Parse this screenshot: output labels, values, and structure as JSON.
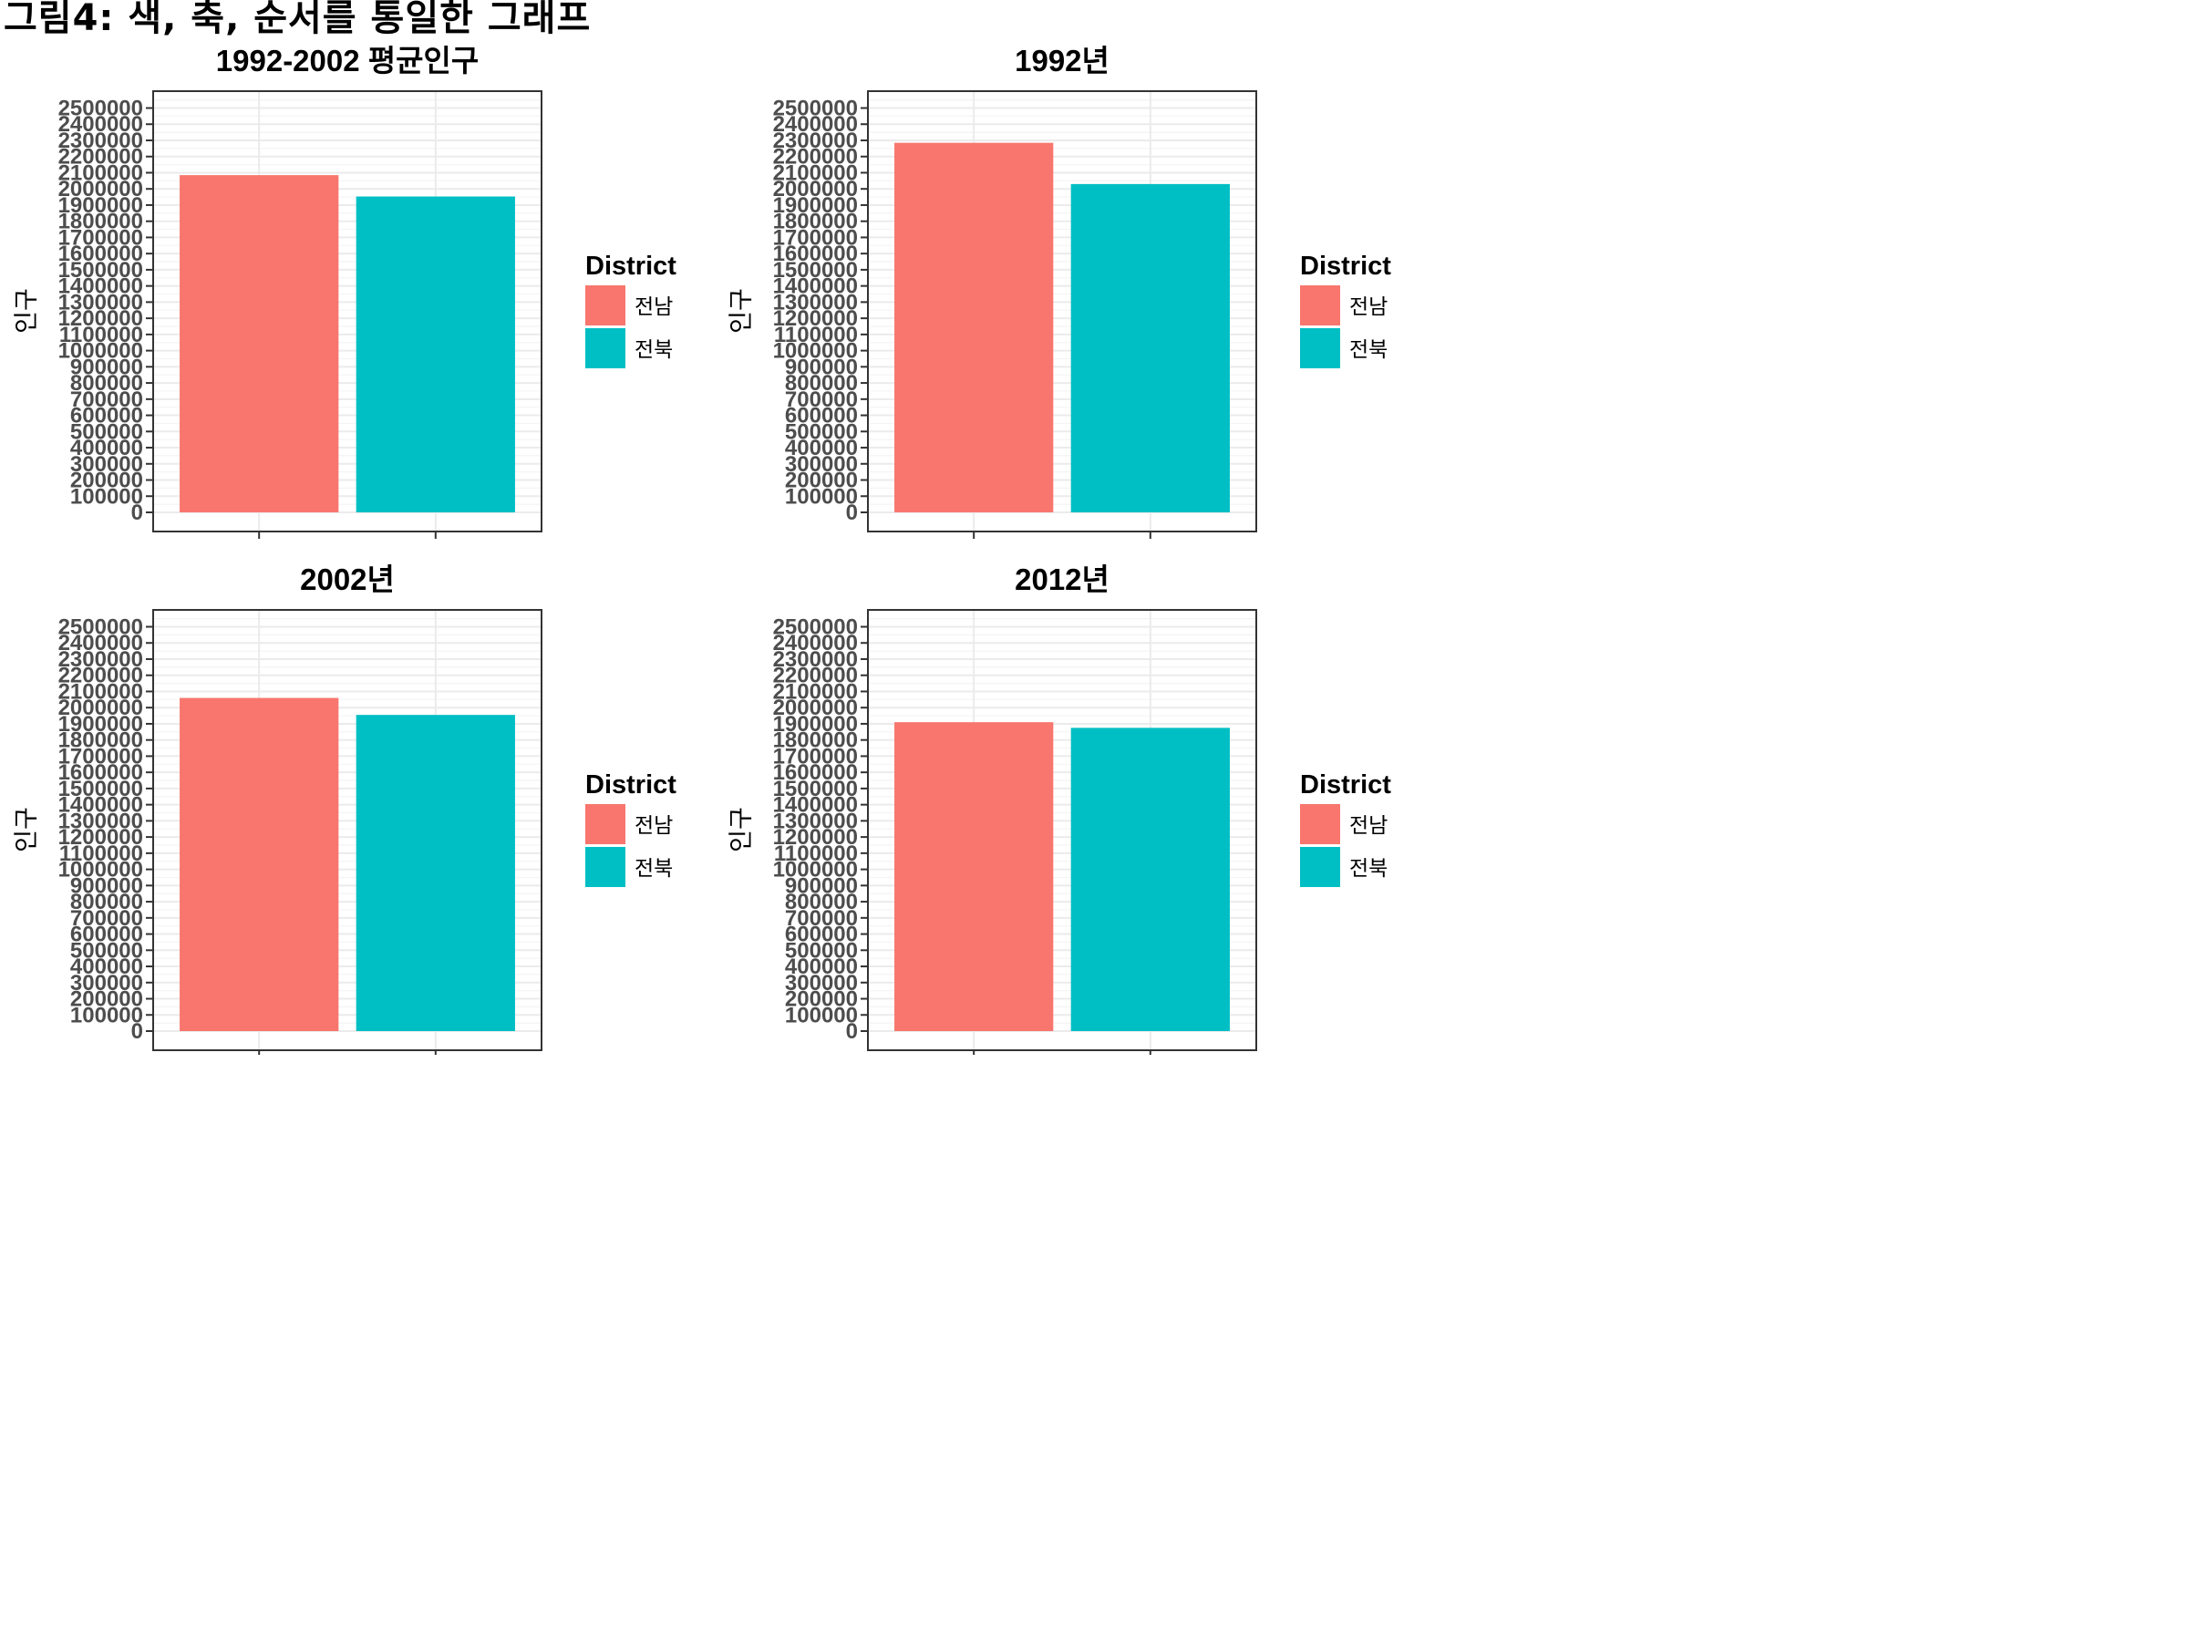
{
  "main_title": "그림4: 색, 축, 순서를 통일한 그래프",
  "colors": {
    "전남": "#F8766D",
    "전북": "#00BFC4",
    "grid_major": "#EBEBEB",
    "grid_minor": "#F4F4F4",
    "panel_border": "#333333",
    "tick_text": "#4D4D4D"
  },
  "chart_data": [
    {
      "type": "bar",
      "title": "1992-2002 평균인구",
      "xlabel": "",
      "ylabel": "인구",
      "categories": [
        "전남",
        "전북"
      ],
      "values": [
        2085000,
        1953000
      ],
      "ylim": [
        0,
        2500000
      ],
      "y_break_step": 100000,
      "legend": {
        "title": "District",
        "entries": [
          "전남",
          "전북"
        ],
        "position": "right"
      }
    },
    {
      "type": "bar",
      "title": "1992년",
      "xlabel": "",
      "ylabel": "인구",
      "categories": [
        "전남",
        "전북"
      ],
      "values": [
        2285000,
        2030000
      ],
      "ylim": [
        0,
        2500000
      ],
      "y_break_step": 100000,
      "legend": {
        "title": "District",
        "entries": [
          "전남",
          "전북"
        ],
        "position": "right"
      }
    },
    {
      "type": "bar",
      "title": "2002년",
      "xlabel": "",
      "ylabel": "인구",
      "categories": [
        "전남",
        "전북"
      ],
      "values": [
        2060000,
        1955000
      ],
      "ylim": [
        0,
        2500000
      ],
      "y_break_step": 100000,
      "legend": {
        "title": "District",
        "entries": [
          "전남",
          "전북"
        ],
        "position": "right"
      }
    },
    {
      "type": "bar",
      "title": "2012년",
      "xlabel": "",
      "ylabel": "인구",
      "categories": [
        "전남",
        "전북"
      ],
      "values": [
        1910000,
        1875000
      ],
      "ylim": [
        0,
        2500000
      ],
      "y_break_step": 100000,
      "legend": {
        "title": "District",
        "entries": [
          "전남",
          "전북"
        ],
        "position": "right"
      }
    }
  ]
}
